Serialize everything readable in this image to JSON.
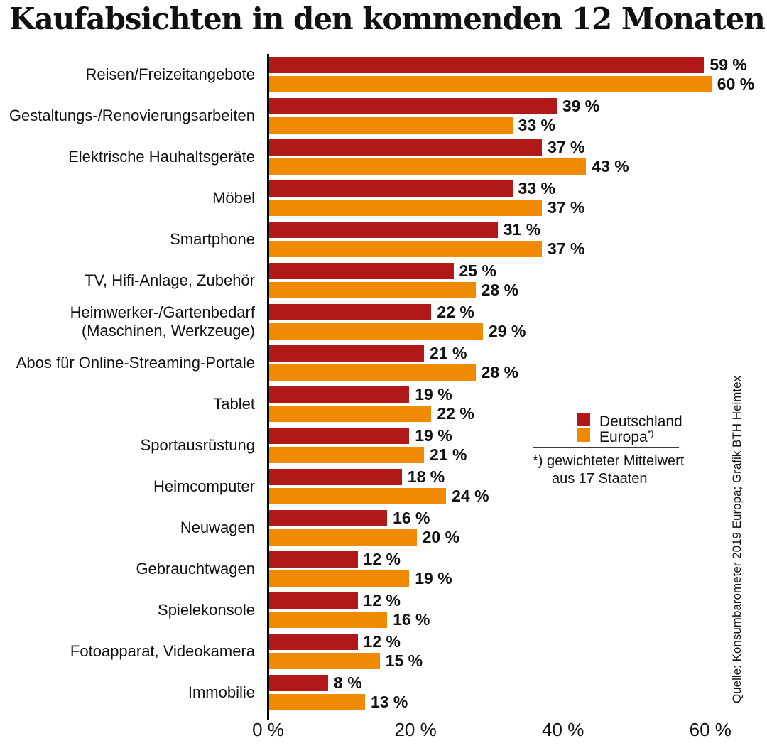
{
  "title": "Kaufabsichten in den kommenden 12 Monaten",
  "colors": {
    "deutschland": "#b01917",
    "europa": "#f08b01",
    "axis": "#000000"
  },
  "chart_data": {
    "type": "bar",
    "orientation": "horizontal",
    "title": "Kaufabsichten in den kommenden 12 Monaten",
    "categories": [
      "Reisen/Freizeitangebote",
      "Gestaltungs-/Renovierungsarbeiten",
      "Elektrische Hauhaltsgeräte",
      "Möbel",
      "Smartphone",
      "TV, Hifi-Anlage, Zubehör",
      "Heimwerker-/Gartenbedarf\n(Maschinen, Werkzeuge)",
      "Abos für Online-Streaming-Portale",
      "Tablet",
      "Sportausrüstung",
      "Heimcomputer",
      "Neuwagen",
      "Gebrauchtwagen",
      "Spielekonsole",
      "Fotoapparat, Videokamera",
      "Immobilie"
    ],
    "series": [
      {
        "name": "Deutschland",
        "color": "#b01917",
        "values": [
          59,
          39,
          37,
          33,
          31,
          25,
          22,
          21,
          19,
          19,
          18,
          16,
          12,
          12,
          12,
          8
        ]
      },
      {
        "name": "Europa",
        "color": "#f08b01",
        "values": [
          60,
          33,
          43,
          37,
          37,
          28,
          29,
          28,
          22,
          21,
          24,
          20,
          19,
          16,
          15,
          13
        ]
      }
    ],
    "value_suffix": " %",
    "xlim": [
      0,
      60
    ],
    "x_ticks": [
      {
        "value": 0,
        "label": "0 %"
      },
      {
        "value": 20,
        "label": "20 %"
      },
      {
        "value": 40,
        "label": "40 %"
      },
      {
        "value": 60,
        "label": "60 %"
      }
    ],
    "grid": false,
    "legend_position": "middle-right"
  },
  "legend": {
    "items": [
      {
        "label": "Deutschland",
        "sup": ""
      },
      {
        "label": "Europa",
        "sup": "*)"
      }
    ],
    "footnote_line1": "*) gewichteter Mittelwert",
    "footnote_line2": "aus 17 Staaten"
  },
  "source": "Quelle: Konsumbarometer 2019 Europa; Grafik BTH Heimtex"
}
